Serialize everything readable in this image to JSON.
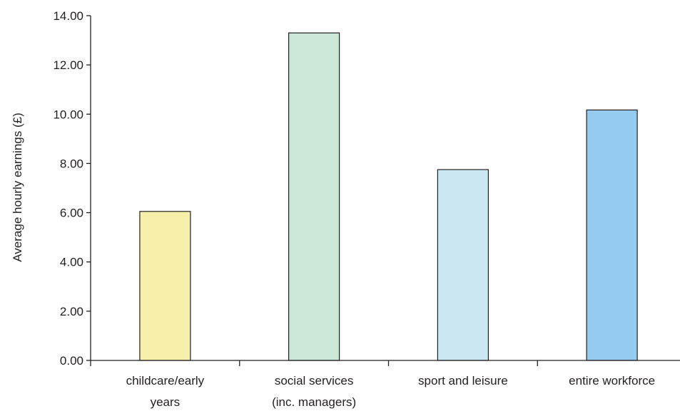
{
  "chart_data": {
    "type": "bar",
    "categories": [
      [
        "childcare/early",
        "years"
      ],
      [
        "social services",
        "(inc. managers)"
      ],
      [
        "sport and leisure"
      ],
      [
        "entire workforce"
      ]
    ],
    "values": [
      6.05,
      13.3,
      7.75,
      10.17
    ],
    "bar_colors": [
      "#f7f0ab",
      "#cbe7d8",
      "#cce9f3",
      "#94cbee"
    ],
    "bar_stroke": "#231f20",
    "axis_color": "#231f20",
    "title": "",
    "xlabel": "",
    "ylabel": "Average hourly earnings (£)",
    "ylim": [
      0,
      14
    ],
    "yticks": [
      "0.00",
      "2.00",
      "4.00",
      "6.00",
      "8.00",
      "10.00",
      "12.00",
      "14.00"
    ],
    "grid": false,
    "legend": "none"
  }
}
